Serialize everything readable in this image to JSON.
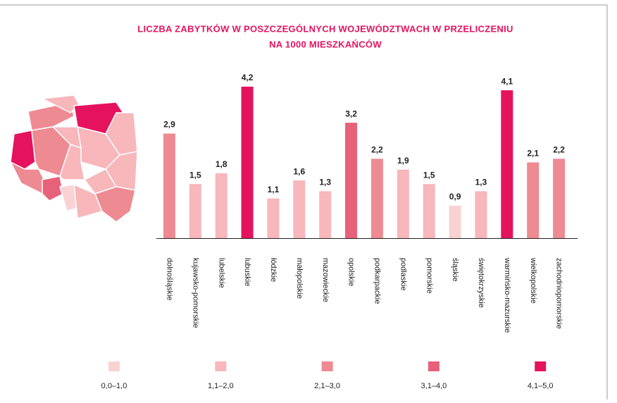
{
  "chart_data": {
    "type": "bar",
    "title": "LICZBA ZABYTKÓW W POSZCZEGÓLNYCH WOJEWÓDZTWACH W PRZELICZENIU",
    "subtitle": "NA 1000 MIESZKAŃCÓW",
    "categories": [
      "dolnośląskie",
      "kujawsko-pomorskie",
      "lubelskie",
      "lubuskie",
      "łódzkie",
      "małopolskie",
      "mazowieckie",
      "opolskie",
      "podkarpackie",
      "podlaskie",
      "pomorskie",
      "śląskie",
      "świętokrzyskie",
      "warmińsko-mazurskie",
      "wielkopolskie",
      "zachodniopomorskie"
    ],
    "values": [
      2.9,
      1.5,
      1.8,
      4.2,
      1.1,
      1.6,
      1.3,
      3.2,
      2.2,
      1.9,
      1.5,
      0.9,
      1.3,
      4.1,
      2.1,
      2.2
    ],
    "value_labels": [
      "2,9",
      "1,5",
      "1,8",
      "4,2",
      "1,1",
      "1,6",
      "1,3",
      "3,2",
      "2,2",
      "1,9",
      "1,5",
      "0,9",
      "1,3",
      "4,1",
      "2,1",
      "2,2"
    ],
    "colors": [
      "#ee8a92",
      "#f7b7bb",
      "#f7b7bb",
      "#e5125e",
      "#f7b7bb",
      "#f7b7bb",
      "#f7b7bb",
      "#e8617a",
      "#ee8a92",
      "#f7b7bb",
      "#f7b7bb",
      "#f9d3d3",
      "#f7b7bb",
      "#e5125e",
      "#ee8a92",
      "#ee8a92"
    ],
    "legend": [
      {
        "label": "0,0–1,0",
        "color": "#f9d3d3"
      },
      {
        "label": "1,1–2,0",
        "color": "#f7b7bb"
      },
      {
        "label": "2,1–3,0",
        "color": "#ee8a92"
      },
      {
        "label": "3,1–4,0",
        "color": "#e8617a"
      },
      {
        "label": "4,1–5,0",
        "color": "#e5125e"
      }
    ]
  }
}
